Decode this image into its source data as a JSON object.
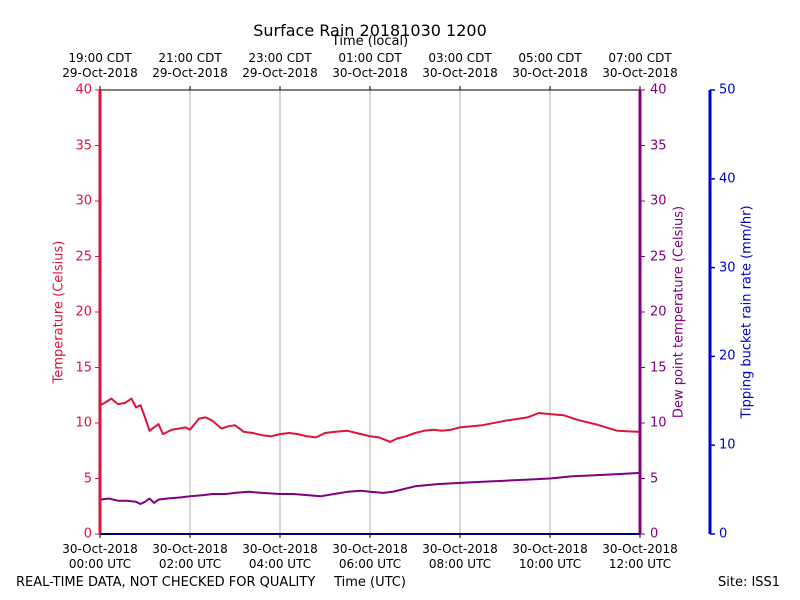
{
  "chart_data": {
    "type": "line",
    "title": "Surface Rain 20181030 1200",
    "top_axis_label": "Time (local)",
    "xlabel": "Time (UTC)",
    "ylabel_left": "Temperature (Celsius)",
    "ylabel_right_inner": "Dew point temperature (Celsius)",
    "ylabel_right_outer": "Tipping bucket rain rate (mm/hr)",
    "xlim_hours": [
      0,
      12
    ],
    "ylim_left": [
      0,
      40
    ],
    "ylim_dew": [
      0,
      40
    ],
    "ylim_rain": [
      0,
      50
    ],
    "y_ticks_left": [
      0,
      5,
      10,
      15,
      20,
      25,
      30,
      35,
      40
    ],
    "y_ticks_rain": [
      0,
      10,
      20,
      30,
      40,
      50
    ],
    "x_ticks_hours": [
      0,
      2,
      4,
      6,
      8,
      10,
      12
    ],
    "x_tick_labels_utc": [
      [
        "30-Oct-2018",
        "00:00 UTC"
      ],
      [
        "30-Oct-2018",
        "02:00 UTC"
      ],
      [
        "30-Oct-2018",
        "04:00 UTC"
      ],
      [
        "30-Oct-2018",
        "06:00 UTC"
      ],
      [
        "30-Oct-2018",
        "08:00 UTC"
      ],
      [
        "30-Oct-2018",
        "10:00 UTC"
      ],
      [
        "30-Oct-2018",
        "12:00 UTC"
      ]
    ],
    "x_tick_labels_local": [
      [
        "19:00 CDT",
        "29-Oct-2018"
      ],
      [
        "21:00 CDT",
        "29-Oct-2018"
      ],
      [
        "23:00 CDT",
        "29-Oct-2018"
      ],
      [
        "01:00 CDT",
        "30-Oct-2018"
      ],
      [
        "03:00 CDT",
        "30-Oct-2018"
      ],
      [
        "05:00 CDT",
        "30-Oct-2018"
      ],
      [
        "07:00 CDT",
        "30-Oct-2018"
      ]
    ],
    "grid": "vertical",
    "colors": {
      "temperature": "#dc143c",
      "dewpoint": "#800080",
      "rain": "#0000cd"
    },
    "series": [
      {
        "name": "Temperature",
        "axis": "left",
        "x": [
          0,
          0.1,
          0.25,
          0.4,
          0.55,
          0.7,
          0.8,
          0.9,
          1.0,
          1.1,
          1.2,
          1.3,
          1.4,
          1.5,
          1.6,
          1.75,
          1.9,
          2.0,
          2.2,
          2.35,
          2.5,
          2.7,
          2.85,
          3.0,
          3.2,
          3.4,
          3.6,
          3.8,
          4.0,
          4.2,
          4.4,
          4.6,
          4.8,
          5.0,
          5.2,
          5.5,
          5.8,
          6.0,
          6.2,
          6.45,
          6.6,
          6.8,
          7.0,
          7.2,
          7.4,
          7.6,
          7.8,
          8.0,
          8.5,
          9.0,
          9.5,
          9.75,
          10.0,
          10.3,
          10.6,
          11.0,
          11.5,
          12.0
        ],
        "values": [
          11.6,
          11.8,
          12.2,
          11.7,
          11.8,
          12.2,
          11.4,
          11.6,
          10.5,
          9.3,
          9.6,
          9.9,
          9.0,
          9.2,
          9.4,
          9.5,
          9.6,
          9.4,
          10.4,
          10.5,
          10.2,
          9.5,
          9.7,
          9.8,
          9.2,
          9.1,
          8.9,
          8.8,
          9.0,
          9.1,
          9.0,
          8.8,
          8.7,
          9.1,
          9.2,
          9.3,
          9.0,
          8.8,
          8.7,
          8.3,
          8.6,
          8.8,
          9.1,
          9.3,
          9.4,
          9.3,
          9.4,
          9.6,
          9.8,
          10.2,
          10.5,
          10.9,
          10.8,
          10.7,
          10.3,
          9.9,
          9.3,
          9.2
        ]
      },
      {
        "name": "Dew point temperature",
        "axis": "right_inner",
        "x": [
          0,
          0.2,
          0.4,
          0.6,
          0.8,
          0.9,
          1.0,
          1.1,
          1.2,
          1.3,
          1.5,
          1.8,
          2.0,
          2.3,
          2.5,
          2.8,
          3.0,
          3.3,
          3.6,
          4.0,
          4.3,
          4.6,
          4.9,
          5.2,
          5.5,
          5.8,
          6.0,
          6.3,
          6.5,
          6.7,
          7.0,
          7.5,
          8.0,
          8.5,
          9.0,
          9.5,
          10.0,
          10.5,
          11.0,
          11.5,
          12.0
        ],
        "values": [
          3.1,
          3.2,
          3.0,
          3.0,
          2.9,
          2.7,
          2.9,
          3.2,
          2.8,
          3.1,
          3.2,
          3.3,
          3.4,
          3.5,
          3.6,
          3.6,
          3.7,
          3.8,
          3.7,
          3.6,
          3.6,
          3.5,
          3.4,
          3.6,
          3.8,
          3.9,
          3.8,
          3.7,
          3.8,
          4.0,
          4.3,
          4.5,
          4.6,
          4.7,
          4.8,
          4.9,
          5.0,
          5.2,
          5.3,
          5.4,
          5.5
        ]
      },
      {
        "name": "Tipping bucket rain rate",
        "axis": "right_outer",
        "x": [
          0,
          12
        ],
        "values": [
          0,
          0
        ]
      }
    ]
  },
  "footer": {
    "left": "REAL-TIME DATA, NOT CHECKED FOR QUALITY",
    "right": "Site: ISS1"
  }
}
